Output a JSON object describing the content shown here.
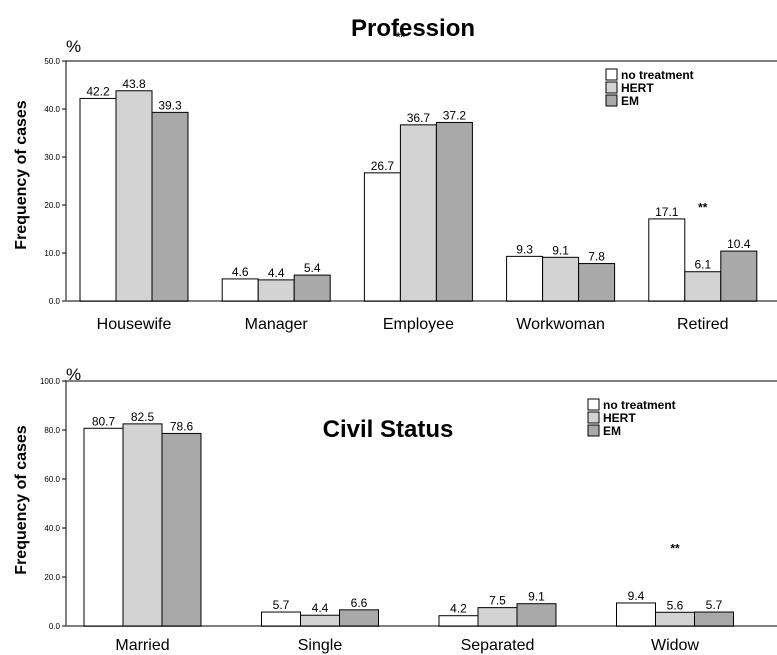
{
  "chart_data": [
    {
      "type": "bar",
      "title": "Profession",
      "ylabel": "Frequency of cases",
      "unit": "%",
      "ylim": [
        0,
        50
      ],
      "yticks": [
        "0.0",
        "10.0",
        "20.0",
        "30.0",
        "40.0",
        "50.0"
      ],
      "categories": [
        "Housewife",
        "Manager",
        "Employee",
        "Workwoman",
        "Retired"
      ],
      "series": [
        {
          "name": "no treatment",
          "color": "#ffffff",
          "values": [
            42.2,
            4.6,
            26.7,
            9.3,
            17.1
          ]
        },
        {
          "name": "HERT",
          "color": "#d3d3d3",
          "values": [
            43.8,
            4.4,
            36.7,
            9.1,
            6.1
          ]
        },
        {
          "name": "EM",
          "color": "#a9a9a9",
          "values": [
            39.3,
            5.4,
            37.2,
            7.8,
            10.4
          ]
        }
      ],
      "value_labels": [
        [
          "42.2",
          "4.6",
          "26.7",
          "9.3",
          "17.1"
        ],
        [
          "43.8",
          "4.4",
          "36.7",
          "9.1",
          "6.1"
        ],
        [
          "39.3",
          "5.4",
          "37.2",
          "7.8",
          "10.4"
        ]
      ],
      "annotations": [
        {
          "text": "**",
          "category_index": 2,
          "series_index": 1
        },
        {
          "text": "**",
          "category_index": 4,
          "series_index": 1
        }
      ],
      "legend_position": "top-right"
    },
    {
      "type": "bar",
      "title": "Civil Status",
      "ylabel": "Frequency of cases",
      "unit": "%",
      "ylim": [
        0,
        100
      ],
      "yticks": [
        "0.0",
        "20.0",
        "40.0",
        "60.0",
        "80.0",
        "100.0"
      ],
      "categories": [
        "Married",
        "Single",
        "Separated",
        "Widow"
      ],
      "series": [
        {
          "name": "no treatment",
          "color": "#ffffff",
          "values": [
            80.7,
            5.7,
            4.2,
            9.4
          ]
        },
        {
          "name": "HERT",
          "color": "#d3d3d3",
          "values": [
            82.5,
            4.4,
            7.5,
            5.6
          ]
        },
        {
          "name": "EM",
          "color": "#a9a9a9",
          "values": [
            78.6,
            6.6,
            9.1,
            5.7
          ]
        }
      ],
      "value_labels": [
        [
          "80.7",
          "5.7",
          "4.2",
          "9.4"
        ],
        [
          "82.5",
          "4.4",
          "7.5",
          "5.6"
        ],
        [
          "78.6",
          "6.6",
          "9.1",
          "5.7"
        ]
      ],
      "annotations": [
        {
          "text": "**",
          "category_index": 3,
          "series_index": 1
        }
      ],
      "legend_position": "top-right"
    }
  ]
}
